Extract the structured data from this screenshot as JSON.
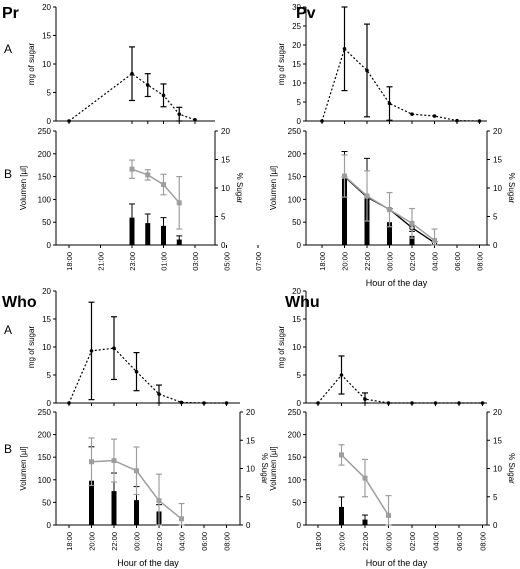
{
  "axis_titles": {
    "sugar_mg": "mg of sugar",
    "volume": "Volumen [µl]",
    "percent": "% Sugar",
    "hour": "Hour of the day"
  },
  "row_labels": {
    "A": "A",
    "B": "B"
  },
  "colors": {
    "ink": "#000000",
    "grey": "#9e9e9e"
  },
  "chart_data": [
    {
      "title": "Pr",
      "type": "line",
      "panel": "A",
      "x_categories": [
        "18:00",
        "21:00",
        "23:00",
        "01:00",
        "03:00",
        "05:00",
        "07:00"
      ],
      "ylim": [
        0,
        20
      ],
      "yticks": [
        0,
        5,
        10,
        15,
        20
      ],
      "ylabel": "mg of sugar",
      "series": [
        {
          "style": "dotted",
          "points": [
            {
              "x": 0,
              "y": 0
            },
            {
              "x": 2,
              "y": 8.3,
              "err": 4.7
            },
            {
              "x": 2.5,
              "y": 6.3,
              "err": 2
            },
            {
              "x": 3,
              "y": 4.5,
              "err": 2
            },
            {
              "x": 3.5,
              "y": 1.2,
              "err": 1.2
            },
            {
              "x": 4,
              "y": 0.2
            }
          ]
        }
      ]
    },
    {
      "title": "",
      "type": "bar+line",
      "panel": "B",
      "x_categories": [
        "18:00",
        "21:00",
        "23:00",
        "01:00",
        "03:00",
        "05:00",
        "07:00"
      ],
      "xlabel": "",
      "ylim": [
        0,
        250
      ],
      "yticks": [
        0,
        50,
        100,
        150,
        200,
        250
      ],
      "y2lim": [
        0,
        20
      ],
      "y2ticks": [
        0,
        5,
        10,
        15,
        20
      ],
      "ylabel": "Volumen [µl]",
      "y2label": "% Sugar",
      "bars": [
        {
          "x": 2,
          "value": 60,
          "err": 30
        },
        {
          "x": 2.5,
          "value": 48,
          "err": 20
        },
        {
          "x": 3,
          "value": 42,
          "err": 18
        },
        {
          "x": 3.5,
          "value": 12,
          "err": 8
        }
      ],
      "sugar_percent": {
        "color": "grey",
        "points": [
          {
            "x": 2,
            "y": 13.3,
            "err": 1.6
          },
          {
            "x": 2.5,
            "y": 12.3,
            "err": 0.9
          },
          {
            "x": 3,
            "y": 10.6,
            "err": 1.8
          },
          {
            "x": 3.5,
            "y": 7.4,
            "err": 4.6
          }
        ]
      }
    },
    {
      "title": "Pv",
      "type": "line",
      "panel": "A",
      "x_categories": [
        "18:00",
        "20:00",
        "22:00",
        "00:00",
        "02:00",
        "04:00",
        "06:00",
        "08:00"
      ],
      "ylim": [
        0,
        30
      ],
      "yticks": [
        0,
        5,
        10,
        15,
        20,
        25,
        30
      ],
      "ylabel": "mg of sugar",
      "series": [
        {
          "style": "dotted",
          "points": [
            {
              "x": 0,
              "y": 0
            },
            {
              "x": 1,
              "y": 19,
              "err": 11
            },
            {
              "x": 2,
              "y": 13.3,
              "err": 12.2
            },
            {
              "x": 3,
              "y": 4.6,
              "err": 4.4
            },
            {
              "x": 4,
              "y": 1.8
            },
            {
              "x": 5,
              "y": 1.3
            },
            {
              "x": 6,
              "y": 0.1
            },
            {
              "x": 7,
              "y": 0
            }
          ]
        }
      ]
    },
    {
      "title": "",
      "type": "bar+line",
      "panel": "B",
      "x_categories": [
        "18:00",
        "20:00",
        "22:00",
        "00:00",
        "02:00",
        "04:00",
        "06:00",
        "08:00"
      ],
      "xlabel": "Hour of the day",
      "ylim": [
        0,
        250
      ],
      "yticks": [
        0,
        50,
        100,
        150,
        200,
        250
      ],
      "y2lim": [
        0,
        20
      ],
      "y2ticks": [
        0,
        5,
        10,
        15,
        20
      ],
      "ylabel": "Volumen [µl]",
      "y2label": "% Sugar",
      "bars": [
        {
          "x": 1,
          "value": 145,
          "err": 60
        },
        {
          "x": 2,
          "value": 105,
          "err": 85
        },
        {
          "x": 3,
          "value": 50,
          "err": 30
        },
        {
          "x": 4,
          "value": 20,
          "err": 10
        },
        {
          "x": 5,
          "value": 5,
          "err": 3
        }
      ],
      "sugar_percent": {
        "color": "grey",
        "points": [
          {
            "x": 1,
            "y": 12.1,
            "err": 3.7
          },
          {
            "x": 2,
            "y": 8.6,
            "err": 4.4
          },
          {
            "x": 3,
            "y": 6.2,
            "err": 3
          },
          {
            "x": 4,
            "y": 3.8,
            "err": 2.6
          },
          {
            "x": 5,
            "y": 0.8,
            "err": 2
          }
        ]
      },
      "volume_line": {
        "color": "ink",
        "points": [
          {
            "x": 1,
            "y": 150
          },
          {
            "x": 2,
            "y": 105
          },
          {
            "x": 3,
            "y": 78
          },
          {
            "x": 4,
            "y": 38
          },
          {
            "x": 5,
            "y": 5
          }
        ]
      }
    },
    {
      "title": "Who",
      "type": "line",
      "panel": "A",
      "x_categories": [
        "18:00",
        "20:00",
        "22:00",
        "00:00",
        "02:00",
        "04:00",
        "06:00",
        "08:00"
      ],
      "ylim": [
        0,
        20
      ],
      "yticks": [
        0,
        5,
        10,
        15,
        20
      ],
      "ylabel": "mg of sugar",
      "series": [
        {
          "style": "dotted",
          "points": [
            {
              "x": 0,
              "y": 0
            },
            {
              "x": 1,
              "y": 9.3,
              "err": 8.7
            },
            {
              "x": 2,
              "y": 9.8,
              "err": 5.6
            },
            {
              "x": 3,
              "y": 5.6,
              "err": 3.4
            },
            {
              "x": 4,
              "y": 1.6,
              "err": 1.6
            },
            {
              "x": 5,
              "y": 0.1
            },
            {
              "x": 6,
              "y": 0
            },
            {
              "x": 7,
              "y": 0
            }
          ]
        }
      ]
    },
    {
      "title": "",
      "type": "bar+line",
      "panel": "B",
      "x_categories": [
        "18:00",
        "20:00",
        "22:00",
        "00:00",
        "02:00",
        "04:00",
        "06:00",
        "08:00"
      ],
      "xlabel": "Hour of the day",
      "ylim": [
        0,
        250
      ],
      "yticks": [
        0,
        50,
        100,
        150,
        200,
        250
      ],
      "y2lim": [
        0,
        20
      ],
      "y2ticks": [
        0,
        5,
        10,
        15,
        20
      ],
      "ylabel": "Volumen [µl]",
      "y2label": "% Sugar",
      "bars": [
        {
          "x": 1,
          "value": 98,
          "err": 75
        },
        {
          "x": 2,
          "value": 75,
          "err": 40
        },
        {
          "x": 3,
          "value": 55,
          "err": 30
        },
        {
          "x": 4,
          "value": 30,
          "err": 15
        }
      ],
      "sugar_percent": {
        "color": "grey",
        "points": [
          {
            "x": 1,
            "y": 11.2,
            "err": 4.2
          },
          {
            "x": 2,
            "y": 11.4,
            "err": 3.8
          },
          {
            "x": 3,
            "y": 9.6,
            "err": 4.2
          },
          {
            "x": 4,
            "y": 4.3,
            "err": 4.7
          },
          {
            "x": 5,
            "y": 1.1,
            "err": 2.7
          }
        ]
      }
    },
    {
      "title": "Whu",
      "type": "line",
      "panel": "A",
      "x_categories": [
        "18:00",
        "20:00",
        "22:00",
        "00:00",
        "02:00",
        "04:00",
        "06:00",
        "08:00"
      ],
      "ylim": [
        0,
        20
      ],
      "yticks": [
        0,
        5,
        10,
        15,
        20
      ],
      "ylabel": "mg of sugar",
      "series": [
        {
          "style": "dotted",
          "points": [
            {
              "x": 0,
              "y": 0
            },
            {
              "x": 1,
              "y": 5,
              "err": 3.4
            },
            {
              "x": 2,
              "y": 0.7,
              "err": 1.1
            },
            {
              "x": 3,
              "y": 0
            },
            {
              "x": 4,
              "y": 0
            },
            {
              "x": 5,
              "y": 0
            },
            {
              "x": 6,
              "y": 0
            },
            {
              "x": 7,
              "y": 0
            }
          ]
        }
      ]
    },
    {
      "title": "",
      "type": "bar+line",
      "panel": "B",
      "x_categories": [
        "18:00",
        "20:00",
        "22:00",
        "00:00",
        "02:00",
        "04:00",
        "06:00",
        "08:00"
      ],
      "xlabel": "Hour of the day",
      "ylim": [
        0,
        250
      ],
      "yticks": [
        0,
        50,
        100,
        150,
        200,
        250
      ],
      "y2lim": [
        0,
        20
      ],
      "y2ticks": [
        0,
        5,
        10,
        15,
        20
      ],
      "ylabel": "Volumen [µl]",
      "y2label": "% Sugar",
      "bars": [
        {
          "x": 1,
          "value": 40,
          "err": 22
        },
        {
          "x": 2,
          "value": 12,
          "err": 10
        }
      ],
      "sugar_percent": {
        "color": "grey",
        "points": [
          {
            "x": 1,
            "y": 12.4,
            "err": 1.8
          },
          {
            "x": 2,
            "y": 8.3,
            "err": 3.3
          },
          {
            "x": 3,
            "y": 1.7,
            "err": 3.5
          }
        ]
      }
    }
  ]
}
